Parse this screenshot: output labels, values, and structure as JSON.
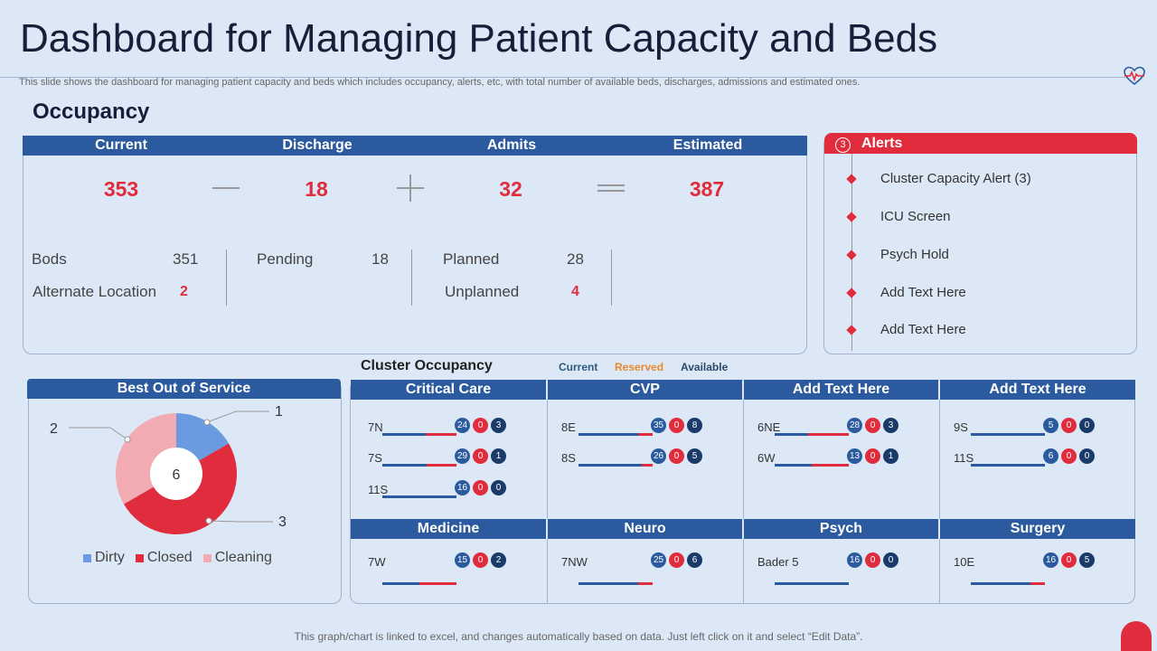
{
  "title": "Dashboard for Managing Patient Capacity and Beds",
  "subtitle": "This slide shows the dashboard for managing patient capacity and beds which includes occupancy, alerts, etc, with total number of available beds, discharges, admissions and estimated ones.",
  "occupancy": {
    "heading": "Occupancy",
    "columns": [
      "Current",
      "Discharge",
      "Admits",
      "Estimated"
    ],
    "values": [
      "353",
      "18",
      "32",
      "387"
    ],
    "beds_label": "Bods",
    "beds_value": "351",
    "alt_label": "Alternate Location",
    "alt_value": "2",
    "pending_label": "Pending",
    "pending_value": "18",
    "planned_label": "Planned",
    "planned_value": "28",
    "unplanned_label": "Unplanned",
    "unplanned_value": "4"
  },
  "alerts": {
    "count": "3",
    "title": "Alerts",
    "items": [
      "Cluster Capacity Alert (3)",
      "ICU Screen",
      "Psych Hold",
      "Add Text Here",
      "Add Text Here"
    ]
  },
  "best_out_of_service": {
    "title": "Best  Out of Service",
    "center": "6",
    "callouts": [
      "1",
      "2",
      "3"
    ],
    "legend": [
      "Dirty",
      "Closed",
      "Cleaning"
    ]
  },
  "cluster": {
    "title": "Cluster Occupancy",
    "legend": [
      "Current",
      "Reserved",
      "Available"
    ],
    "panels": [
      {
        "title": "Critical Care",
        "rows": [
          {
            "unit": "7N",
            "vals": [
              "24",
              "0",
              "3"
            ],
            "fill": 0.58
          },
          {
            "unit": "7S",
            "vals": [
              "29",
              "0",
              "1"
            ],
            "fill": 0.6
          },
          {
            "unit": "11S",
            "vals": [
              "16",
              "0",
              "0"
            ],
            "fill": 1.0
          }
        ]
      },
      {
        "title": "CVP",
        "rows": [
          {
            "unit": "8E",
            "vals": [
              "35",
              "0",
              "8"
            ],
            "fill": 0.8
          },
          {
            "unit": "8S",
            "vals": [
              "26",
              "0",
              "5"
            ],
            "fill": 0.85
          }
        ]
      },
      {
        "title": "Add Text Here",
        "rows": [
          {
            "unit": "6NE",
            "vals": [
              "28",
              "0",
              "3"
            ],
            "fill": 0.45
          },
          {
            "unit": "6W",
            "vals": [
              "13",
              "0",
              "1"
            ],
            "fill": 0.5
          }
        ]
      },
      {
        "title": "Add Text Here",
        "rows": [
          {
            "unit": "9S",
            "vals": [
              "5",
              "0",
              "0"
            ],
            "fill": 1.0
          },
          {
            "unit": "11S",
            "vals": [
              "6",
              "0",
              "0"
            ],
            "fill": 1.0
          }
        ]
      },
      {
        "title": "Medicine",
        "rows": [
          {
            "unit": "7W",
            "vals": [
              "15",
              "0",
              "2"
            ],
            "fill": 0.5
          }
        ]
      },
      {
        "title": "Neuro",
        "rows": [
          {
            "unit": "7NW",
            "vals": [
              "25",
              "0",
              "6"
            ],
            "fill": 0.8
          }
        ]
      },
      {
        "title": "Psych",
        "rows": [
          {
            "unit": "Bader 5",
            "vals": [
              "16",
              "0",
              "0"
            ],
            "fill": 1.0
          }
        ]
      },
      {
        "title": "Surgery",
        "rows": [
          {
            "unit": "10E",
            "vals": [
              "16",
              "0",
              "5"
            ],
            "fill": 0.8
          }
        ]
      }
    ]
  },
  "footer": "This graph/chart is linked to excel,  and changes automatically based on data. Just left click on it and select “Edit Data”.",
  "chart_data": {
    "type": "pie",
    "categories": [
      "Dirty",
      "Closed",
      "Cleaning"
    ],
    "values": [
      1,
      3,
      2
    ],
    "colors": [
      "#6a9be0",
      "#e02c3c",
      "#f2aab3"
    ]
  },
  "colors": {
    "navy": "#2b5b9e",
    "red": "#e02c3c",
    "background": "#dde8f6"
  }
}
